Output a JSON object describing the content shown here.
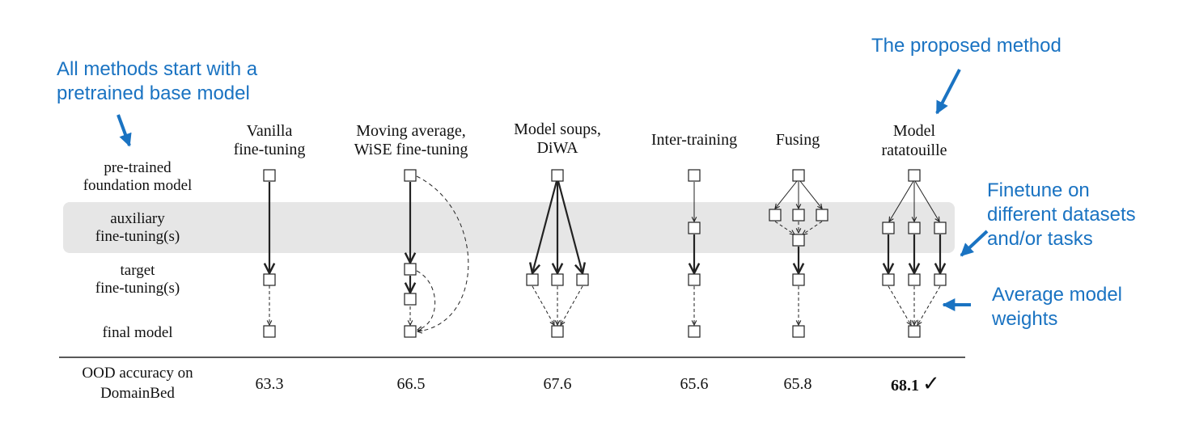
{
  "annotations": {
    "start": [
      "All methods start with a",
      "pretrained base model"
    ],
    "proposed": [
      "The proposed method"
    ],
    "finetune": [
      "Finetune on",
      "different datasets",
      "and/or tasks"
    ],
    "average": [
      "Average model",
      "weights"
    ]
  },
  "rows": {
    "pretrained": [
      "pre-trained",
      "foundation model"
    ],
    "auxiliary": [
      "auxiliary",
      "fine-tuning(s)"
    ],
    "target": [
      "target",
      "fine-tuning(s)"
    ],
    "final": [
      "final model"
    ]
  },
  "metric_label": [
    "OOD accuracy on",
    "DomainBed"
  ],
  "methods": [
    {
      "key": "vanilla",
      "name": [
        "Vanilla",
        "fine-tuning"
      ],
      "score": "63.3"
    },
    {
      "key": "moving",
      "name": [
        "Moving average,",
        "WiSE fine-tuning"
      ],
      "score": "66.5"
    },
    {
      "key": "soups",
      "name": [
        "Model soups,",
        "DiWA"
      ],
      "score": "67.6"
    },
    {
      "key": "inter",
      "name": [
        "Inter-training"
      ],
      "score": "65.6"
    },
    {
      "key": "fusing",
      "name": [
        "Fusing"
      ],
      "score": "65.8"
    },
    {
      "key": "ratatouille",
      "name": [
        "Model",
        "ratatouille"
      ],
      "score": "68.1",
      "best_mark": "✓"
    }
  ],
  "colors": {
    "annotation": "#1a73c2",
    "band": "#e6e6e6",
    "ink": "#222222"
  }
}
